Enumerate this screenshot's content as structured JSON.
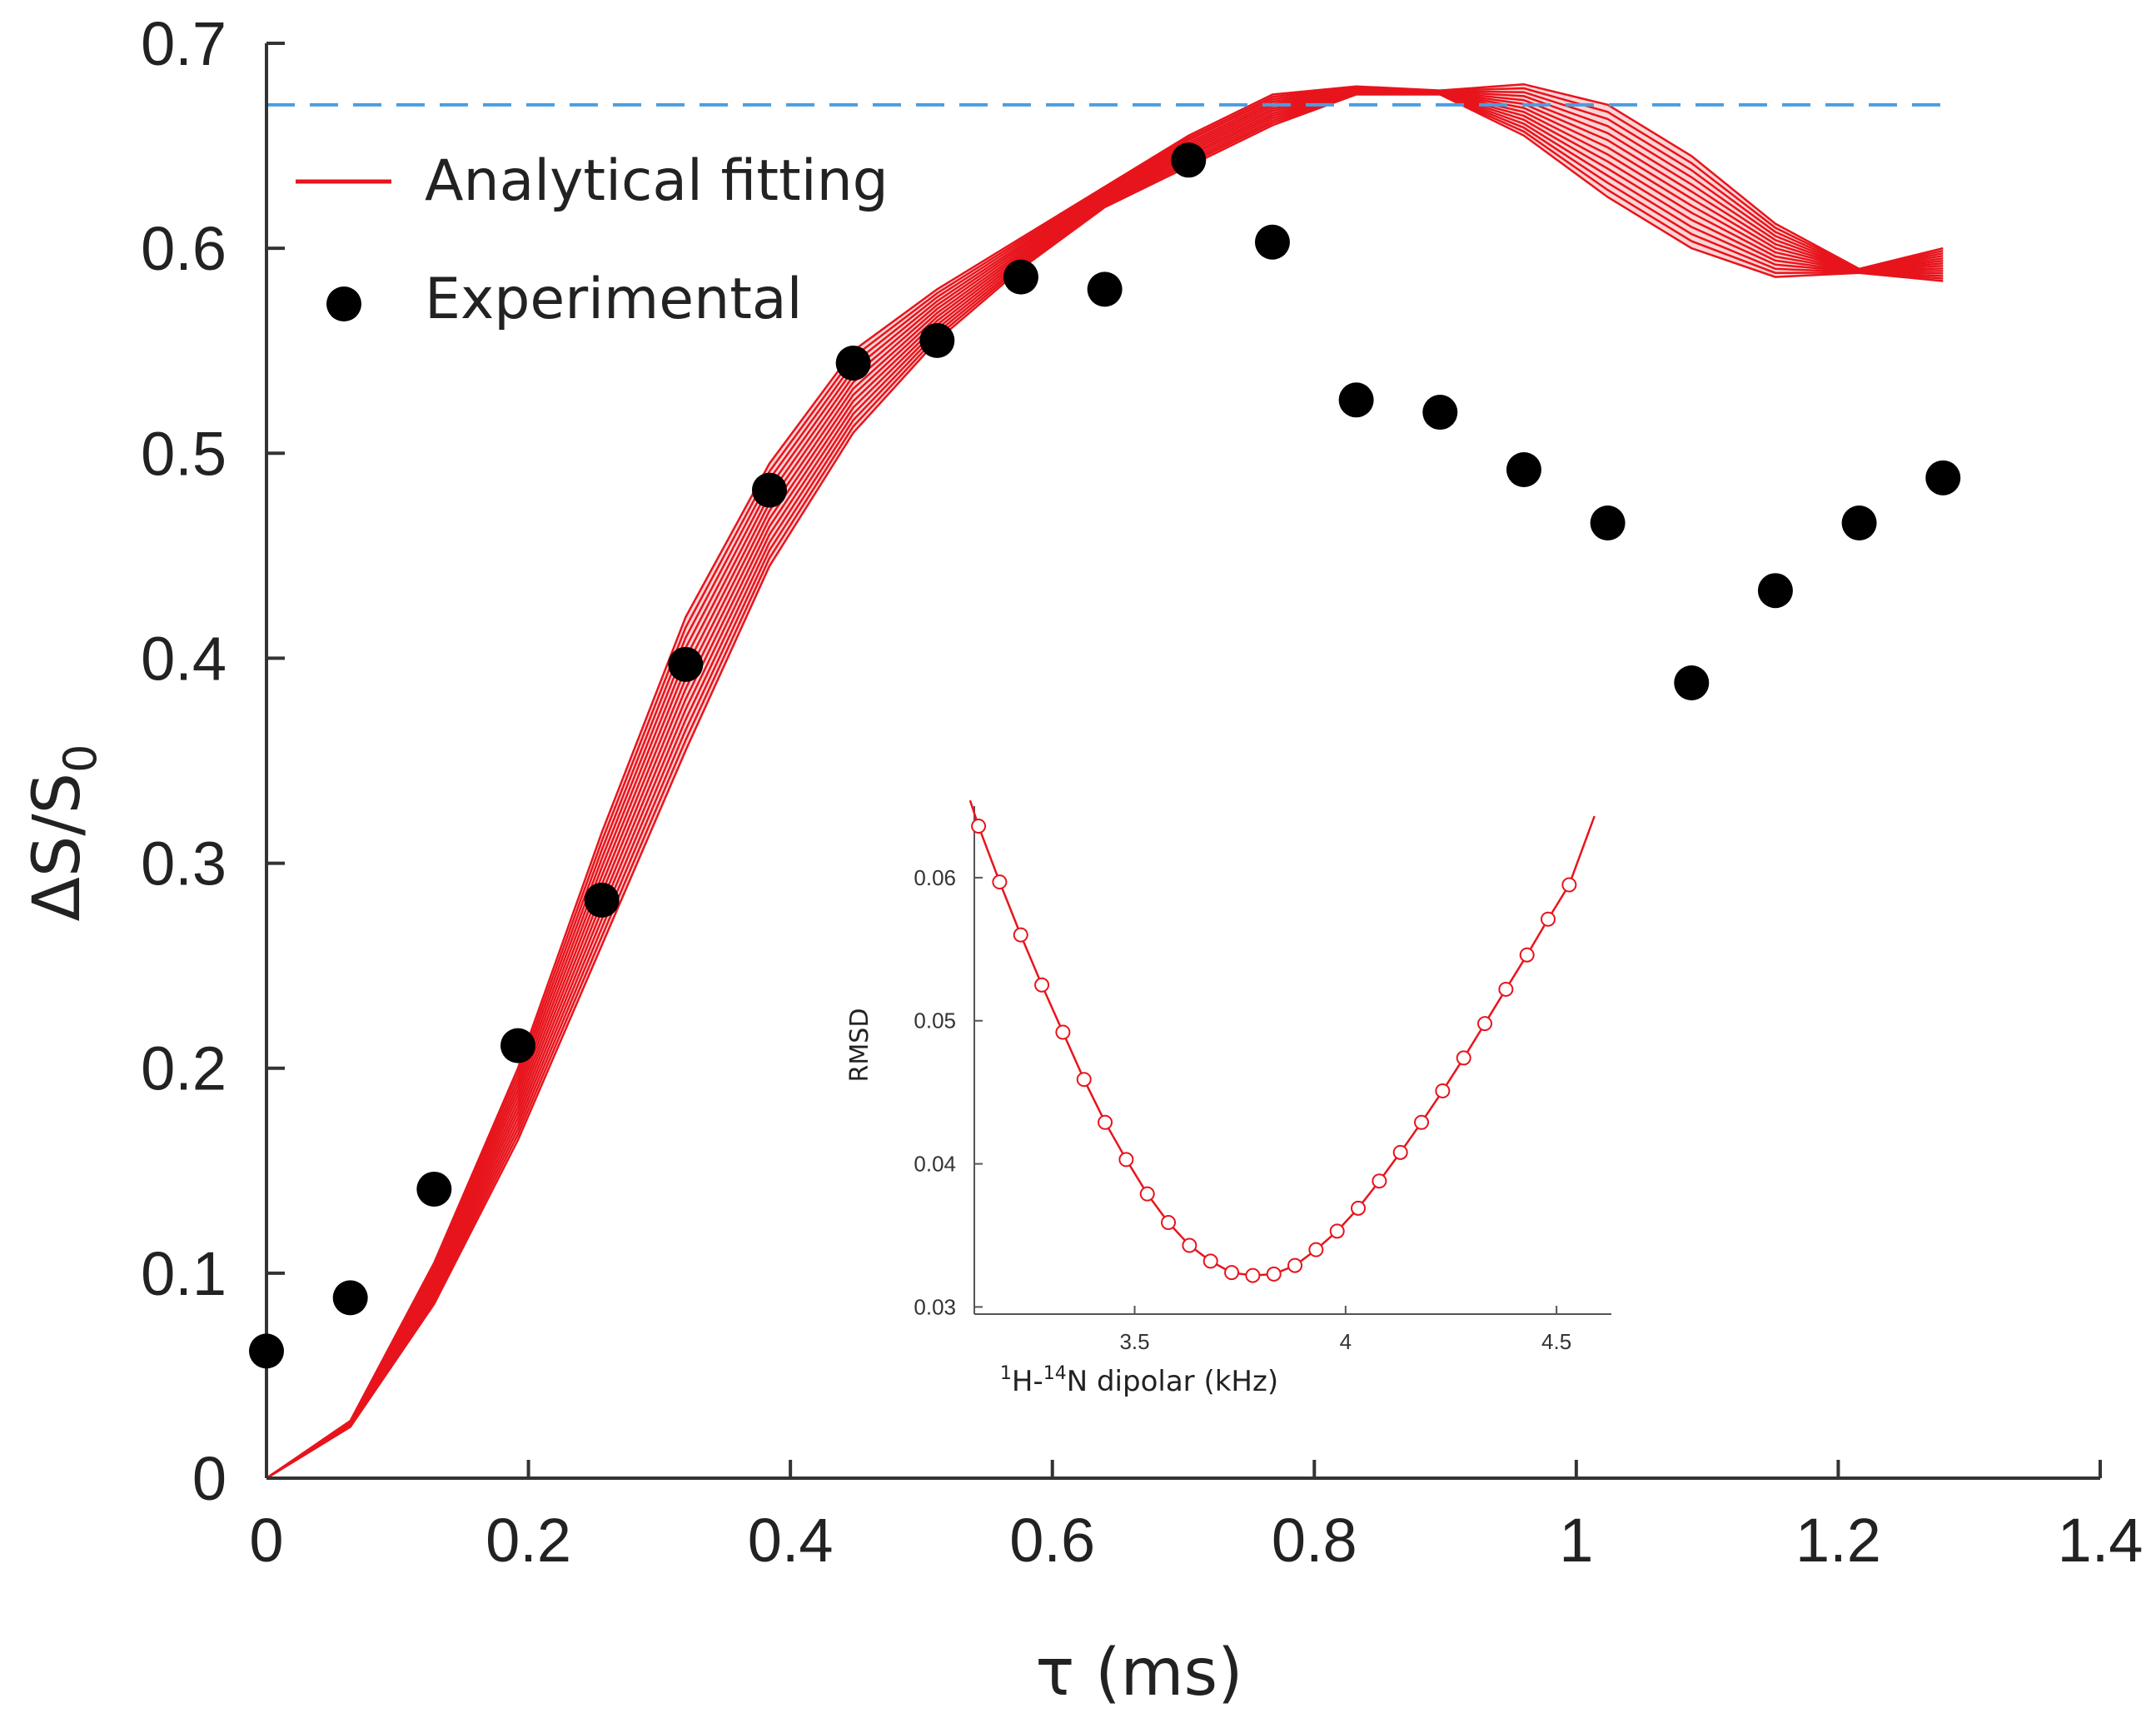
{
  "chart_data": [
    {
      "type": "scatter",
      "xlabel": "τ (ms)",
      "ylabel_main": "ΔS/S",
      "ylabel_sub": "0",
      "xlim": [
        0,
        1.4
      ],
      "ylim": [
        0,
        0.7
      ],
      "xticks": [
        0,
        0.2,
        0.4,
        0.6,
        0.8,
        1,
        1.2,
        1.4
      ],
      "yticks": [
        0,
        0.1,
        0.2,
        0.3,
        0.4,
        0.5,
        0.6,
        0.7
      ],
      "xtick_labels": [
        "0",
        "0.2",
        "0.4",
        "0.6",
        "0.8",
        "1",
        "1.2",
        "1.4"
      ],
      "ytick_labels": [
        "0",
        "0.1",
        "0.2",
        "0.3",
        "0.4",
        "0.5",
        "0.6",
        "0.7"
      ],
      "reference_line": {
        "y": 0.67,
        "style": "dashed",
        "color": "#4a9ee0"
      },
      "legend": {
        "placement": "top-left",
        "entries": [
          {
            "label": "Analytical fitting",
            "marker": "line",
            "color": "#e8141c"
          },
          {
            "label": "Experimental",
            "marker": "dot",
            "color": "#000000"
          }
        ]
      },
      "series": [
        {
          "name": "Experimental",
          "color": "#000000",
          "x": [
            0.0,
            0.064,
            0.128,
            0.192,
            0.256,
            0.32,
            0.384,
            0.448,
            0.512,
            0.576,
            0.64,
            0.704,
            0.768,
            0.832,
            0.896,
            0.96,
            1.024,
            1.088,
            1.152,
            1.216,
            1.28
          ],
          "y": [
            0.062,
            0.088,
            0.141,
            0.211,
            0.282,
            0.397,
            0.482,
            0.544,
            0.555,
            0.586,
            0.58,
            0.643,
            0.603,
            0.526,
            0.52,
            0.492,
            0.466,
            0.388,
            0.433,
            0.466,
            0.488
          ]
        },
        {
          "name": "Analytical fitting",
          "color": "#e8141c",
          "band_count": 14,
          "x": [
            0.0,
            0.064,
            0.128,
            0.192,
            0.256,
            0.32,
            0.384,
            0.448,
            0.512,
            0.576,
            0.64,
            0.704,
            0.768,
            0.832,
            0.896,
            0.96,
            1.024,
            1.088,
            1.152,
            1.216,
            1.28
          ],
          "y_lower": [
            0.0,
            0.025,
            0.085,
            0.165,
            0.26,
            0.355,
            0.445,
            0.51,
            0.555,
            0.59,
            0.62,
            0.64,
            0.66,
            0.675,
            0.675,
            0.655,
            0.625,
            0.6,
            0.586,
            0.588,
            0.584
          ],
          "y_upper": [
            0.0,
            0.028,
            0.105,
            0.2,
            0.315,
            0.42,
            0.495,
            0.55,
            0.58,
            0.605,
            0.63,
            0.655,
            0.675,
            0.679,
            0.677,
            0.68,
            0.67,
            0.645,
            0.612,
            0.59,
            0.6
          ]
        }
      ]
    },
    {
      "type": "line",
      "xlabel_parts": [
        "1",
        "H-",
        "14",
        "N dipolar (kHz)"
      ],
      "ylabel": "RMSD",
      "xlim": [
        3.12,
        4.63
      ],
      "ylim": [
        0.0295,
        0.065
      ],
      "xticks": [
        3.5,
        4,
        4.5
      ],
      "yticks": [
        0.03,
        0.04,
        0.05,
        0.06
      ],
      "xtick_labels": [
        "3.5",
        "4",
        "4.5"
      ],
      "ytick_labels": [
        "0.03",
        "0.04",
        "0.05",
        "0.06"
      ],
      "series": [
        {
          "color": "#e8141c",
          "marker": "open-circle",
          "x": [
            3.13,
            3.18,
            3.23,
            3.28,
            3.33,
            3.38,
            3.43,
            3.48,
            3.53,
            3.58,
            3.63,
            3.68,
            3.73,
            3.78,
            3.83,
            3.88,
            3.93,
            3.98,
            4.03,
            4.08,
            4.13,
            4.18,
            4.23,
            4.28,
            4.33,
            4.38,
            4.43,
            4.48,
            4.53
          ],
          "y": [
            0.0636,
            0.0597,
            0.056,
            0.0525,
            0.0492,
            0.0459,
            0.0429,
            0.0403,
            0.0379,
            0.0359,
            0.0343,
            0.0332,
            0.0324,
            0.0322,
            0.0323,
            0.0329,
            0.034,
            0.0353,
            0.0369,
            0.0388,
            0.0408,
            0.0429,
            0.0451,
            0.0474,
            0.0498,
            0.0522,
            0.0546,
            0.0571,
            0.0595
          ]
        }
      ]
    }
  ]
}
